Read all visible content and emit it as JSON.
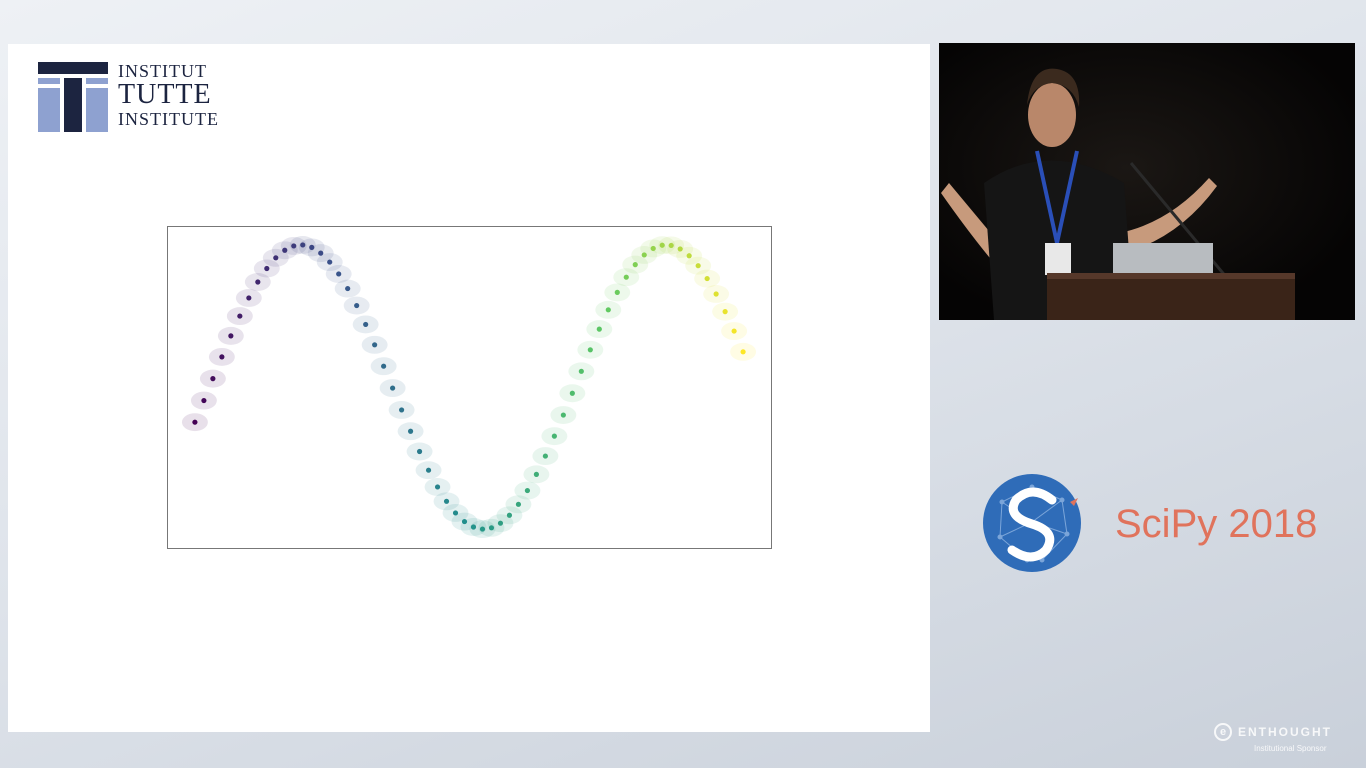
{
  "logo": {
    "line1": "INSTITUT",
    "line2": "TUTTE",
    "line3": "INSTITUTE",
    "colors": {
      "dark": "#1c2440",
      "light": "#8ea1d0"
    }
  },
  "plot": {
    "description_icon": "scatter-sine-points",
    "colormap": [
      "#440154",
      "#3b528b",
      "#21918c",
      "#5ec962",
      "#fde725"
    ]
  },
  "video": {
    "icon": "speaker-camera-feed"
  },
  "conference": {
    "name": "SciPy 2018",
    "color": "#e0735c",
    "logo_color": "#2f6cb8"
  },
  "sponsor": {
    "name": "ENTHOUGHT",
    "subtitle": "Institutional Sponsor"
  }
}
